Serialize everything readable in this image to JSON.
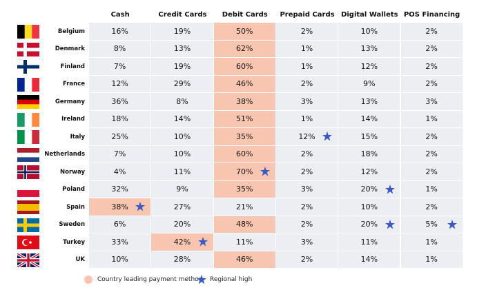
{
  "table": {
    "columns": [
      "Cash",
      "Credit Cards",
      "Debit Cards",
      "Prepaid Cards",
      "Digital Wallets",
      "POS Financing"
    ],
    "rows": [
      {
        "country": "Belgium",
        "cells": [
          "16%",
          "19%",
          "50%",
          "2%",
          "10%",
          "2%"
        ],
        "leader": 2,
        "highs": []
      },
      {
        "country": "Denmark",
        "cells": [
          "8%",
          "13%",
          "62%",
          "1%",
          "13%",
          "2%"
        ],
        "leader": 2,
        "highs": []
      },
      {
        "country": "Finland",
        "cells": [
          "7%",
          "19%",
          "60%",
          "1%",
          "12%",
          "2%"
        ],
        "leader": 2,
        "highs": []
      },
      {
        "country": "France",
        "cells": [
          "12%",
          "29%",
          "46%",
          "2%",
          "9%",
          "2%"
        ],
        "leader": 2,
        "highs": []
      },
      {
        "country": "Germany",
        "cells": [
          "36%",
          "8%",
          "38%",
          "3%",
          "13%",
          "3%"
        ],
        "leader": 2,
        "highs": []
      },
      {
        "country": "Ireland",
        "cells": [
          "18%",
          "14%",
          "51%",
          "1%",
          "14%",
          "1%"
        ],
        "leader": 2,
        "highs": []
      },
      {
        "country": "Italy",
        "cells": [
          "25%",
          "10%",
          "35%",
          "12%",
          "15%",
          "2%"
        ],
        "leader": 2,
        "highs": [
          3
        ]
      },
      {
        "country": "Netherlands",
        "cells": [
          "7%",
          "10%",
          "60%",
          "2%",
          "18%",
          "2%"
        ],
        "leader": 2,
        "highs": []
      },
      {
        "country": "Norway",
        "cells": [
          "4%",
          "11%",
          "70%",
          "2%",
          "12%",
          "2%"
        ],
        "leader": 2,
        "highs": [
          2
        ]
      },
      {
        "country": "Poland",
        "cells": [
          "32%",
          "9%",
          "35%",
          "3%",
          "20%",
          "1%"
        ],
        "leader": 2,
        "highs": [
          4
        ]
      },
      {
        "country": "Spain",
        "cells": [
          "38%",
          "27%",
          "21%",
          "2%",
          "10%",
          "2%"
        ],
        "leader": 0,
        "highs": [
          0
        ]
      },
      {
        "country": "Sweden",
        "cells": [
          "6%",
          "20%",
          "48%",
          "2%",
          "20%",
          "5%"
        ],
        "leader": 2,
        "highs": [
          4,
          5
        ]
      },
      {
        "country": "Turkey",
        "cells": [
          "33%",
          "42%",
          "11%",
          "3%",
          "11%",
          "1%"
        ],
        "leader": 1,
        "highs": [
          1
        ]
      },
      {
        "country": "UK",
        "cells": [
          "10%",
          "28%",
          "46%",
          "2%",
          "14%",
          "1%"
        ],
        "leader": 2,
        "highs": []
      }
    ],
    "leader_color": "#f8c6b0",
    "high_color": "#3a5bc7"
  },
  "legend": {
    "leader": "Country leading payment method",
    "high": "Regional high"
  }
}
